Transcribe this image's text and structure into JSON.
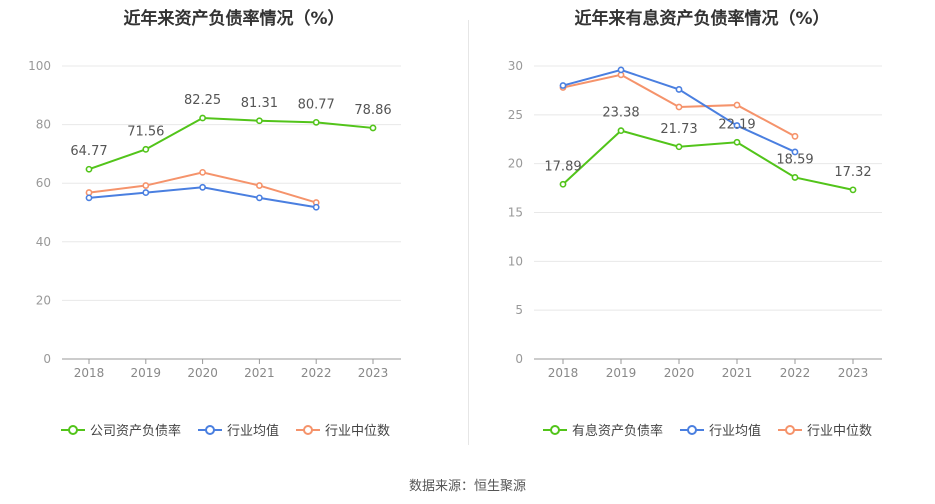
{
  "source": "数据来源：恒生聚源",
  "chart_data": [
    {
      "type": "line",
      "title": "近年来资产负债率情况（%）",
      "categories": [
        "2018",
        "2019",
        "2020",
        "2021",
        "2022",
        "2023"
      ],
      "ylim": [
        0,
        100
      ],
      "yticks": [
        "0",
        "20",
        "40",
        "60",
        "80",
        "100"
      ],
      "grid": true,
      "legend_position": "bottom",
      "series": [
        {
          "name": "公司资产负债率",
          "color": "#52c41a",
          "values": [
            64.77,
            71.56,
            82.25,
            81.31,
            80.77,
            78.86
          ],
          "labels": [
            "64.77",
            "71.56",
            "82.25",
            "81.31",
            "80.77",
            "78.86"
          ]
        },
        {
          "name": "行业均值",
          "color": "#4a7fe0",
          "values": [
            55.0,
            56.8,
            58.6,
            55.0,
            51.8,
            null
          ]
        },
        {
          "name": "行业中位数",
          "color": "#f5936b",
          "values": [
            56.8,
            59.2,
            63.7,
            59.2,
            53.4,
            null
          ]
        }
      ]
    },
    {
      "type": "line",
      "title": "近年来有息资产负债率情况（%）",
      "categories": [
        "2018",
        "2019",
        "2020",
        "2021",
        "2022",
        "2023"
      ],
      "ylim": [
        0,
        30
      ],
      "yticks": [
        "0",
        "5",
        "10",
        "15",
        "20",
        "25",
        "30"
      ],
      "grid": true,
      "legend_position": "bottom",
      "series": [
        {
          "name": "有息资产负债率",
          "color": "#52c41a",
          "values": [
            17.89,
            23.38,
            21.73,
            22.19,
            18.59,
            17.32
          ],
          "labels": [
            "17.89",
            "23.38",
            "21.73",
            "22.19",
            "18.59",
            "17.32"
          ]
        },
        {
          "name": "行业均值",
          "color": "#4a7fe0",
          "values": [
            28.0,
            29.6,
            27.6,
            23.9,
            21.2,
            null
          ]
        },
        {
          "name": "行业中位数",
          "color": "#f5936b",
          "values": [
            27.8,
            29.1,
            25.8,
            26.0,
            22.8,
            null
          ]
        }
      ]
    }
  ]
}
